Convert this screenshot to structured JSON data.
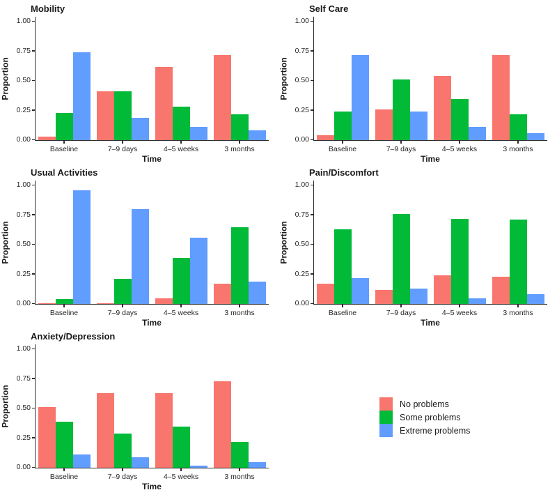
{
  "colors": {
    "no_problems": "#F8766D",
    "some_problems": "#00BA38",
    "extreme_problems": "#619CFF",
    "axis_line": "#2b2b2b"
  },
  "axis": {
    "ylabel": "Proportion",
    "xlabel": "Time",
    "yticks": [
      "0.00",
      "0.25",
      "0.50",
      "0.75",
      "1.00"
    ],
    "ylim": [
      0,
      1
    ],
    "grid": false
  },
  "legend": {
    "position": "bottom-right",
    "items": [
      {
        "label": "No problems",
        "color": "#F8766D"
      },
      {
        "label": "Some problems",
        "color": "#00BA38"
      },
      {
        "label": "Extreme problems",
        "color": "#619CFF"
      }
    ]
  },
  "chart_data": [
    {
      "type": "bar",
      "title": "Mobility",
      "xlabel": "Time",
      "ylabel": "Proportion",
      "ylim": [
        0,
        1
      ],
      "categories": [
        "Baseline",
        "7–9 days",
        "4–5 weeks",
        "3 months"
      ],
      "series": [
        {
          "name": "No problems",
          "color": "#F8766D",
          "values": [
            0.03,
            0.41,
            0.62,
            0.72
          ]
        },
        {
          "name": "Some problems",
          "color": "#00BA38",
          "values": [
            0.23,
            0.41,
            0.28,
            0.22
          ]
        },
        {
          "name": "Extreme problems",
          "color": "#619CFF",
          "values": [
            0.74,
            0.19,
            0.11,
            0.08
          ]
        }
      ]
    },
    {
      "type": "bar",
      "title": "Self Care",
      "xlabel": "Time",
      "ylabel": "Proportion",
      "ylim": [
        0,
        1
      ],
      "categories": [
        "Baseline",
        "7–9 days",
        "4–5 weeks",
        "3 months"
      ],
      "series": [
        {
          "name": "No problems",
          "color": "#F8766D",
          "values": [
            0.04,
            0.26,
            0.54,
            0.72
          ]
        },
        {
          "name": "Some problems",
          "color": "#00BA38",
          "values": [
            0.24,
            0.51,
            0.35,
            0.22
          ]
        },
        {
          "name": "Extreme problems",
          "color": "#619CFF",
          "values": [
            0.72,
            0.24,
            0.11,
            0.06
          ]
        }
      ]
    },
    {
      "type": "bar",
      "title": "Usual Activities",
      "xlabel": "Time",
      "ylabel": "Proportion",
      "ylim": [
        0,
        1
      ],
      "categories": [
        "Baseline",
        "7–9 days",
        "4–5 weeks",
        "3 months"
      ],
      "series": [
        {
          "name": "No problems",
          "color": "#F8766D",
          "values": [
            0.005,
            0.005,
            0.05,
            0.17
          ]
        },
        {
          "name": "Some problems",
          "color": "#00BA38",
          "values": [
            0.04,
            0.21,
            0.39,
            0.65
          ]
        },
        {
          "name": "Extreme problems",
          "color": "#619CFF",
          "values": [
            0.96,
            0.8,
            0.56,
            0.19
          ]
        }
      ]
    },
    {
      "type": "bar",
      "title": "Pain/Discomfort",
      "xlabel": "Time",
      "ylabel": "Proportion",
      "ylim": [
        0,
        1
      ],
      "categories": [
        "Baseline",
        "7–9 days",
        "4–5 weeks",
        "3 months"
      ],
      "series": [
        {
          "name": "No problems",
          "color": "#F8766D",
          "values": [
            0.17,
            0.12,
            0.24,
            0.23
          ]
        },
        {
          "name": "Some problems",
          "color": "#00BA38",
          "values": [
            0.63,
            0.76,
            0.72,
            0.71
          ]
        },
        {
          "name": "Extreme problems",
          "color": "#619CFF",
          "values": [
            0.22,
            0.13,
            0.05,
            0.08
          ]
        }
      ]
    },
    {
      "type": "bar",
      "title": "Anxiety/Depression",
      "xlabel": "Time",
      "ylabel": "Proportion",
      "ylim": [
        0,
        1
      ],
      "categories": [
        "Baseline",
        "7–9 days",
        "4–5 weeks",
        "3 months"
      ],
      "series": [
        {
          "name": "No problems",
          "color": "#F8766D",
          "values": [
            0.51,
            0.63,
            0.63,
            0.73
          ]
        },
        {
          "name": "Some problems",
          "color": "#00BA38",
          "values": [
            0.39,
            0.29,
            0.35,
            0.22
          ]
        },
        {
          "name": "Extreme problems",
          "color": "#619CFF",
          "values": [
            0.11,
            0.09,
            0.02,
            0.05
          ]
        }
      ]
    }
  ]
}
